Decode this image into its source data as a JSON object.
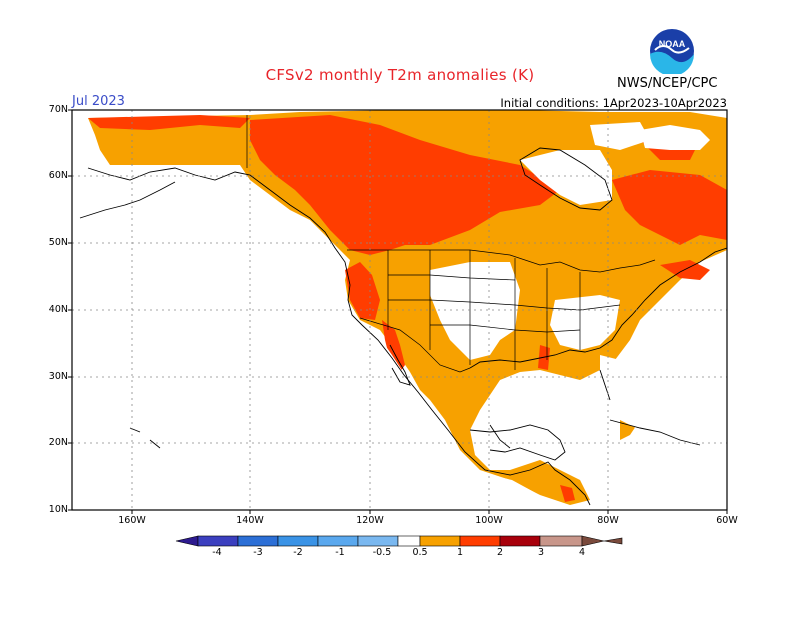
{
  "title": "CFSv2 monthly T2m anomalies (K)",
  "month": "Jul 2023",
  "initial_conditions": "Initial conditions: 1Apr2023-10Apr2023",
  "agency": "NWS/NCEP/CPC",
  "logo_text": "NOAA",
  "lat_labels": [
    "70N",
    "60N",
    "50N",
    "40N",
    "30N",
    "20N",
    "10N"
  ],
  "lon_labels": [
    "160W",
    "140W",
    "120W",
    "100W",
    "80W",
    "60W"
  ],
  "colorbar_labels": [
    "-4",
    "-3",
    "-2",
    "-1",
    "-0.5",
    "0.5",
    "1",
    "2",
    "3",
    "4"
  ],
  "colors": {
    "lt_minus4": "#2d1a8f",
    "m4_m3": "#3b3fbf",
    "m3_m2": "#2c6fd6",
    "m2_m1": "#3a93e6",
    "m1_m05": "#7ab8f0",
    "neutral": "#ffffff",
    "p05_p1": "#f7a100",
    "p1_p2": "#ff3d00",
    "p2_p3": "#a8000b",
    "p3_p4": "#c8968a",
    "gt_p4": "#7a4a3c",
    "title": "#e8242a",
    "month": "#3a4cc8"
  }
}
